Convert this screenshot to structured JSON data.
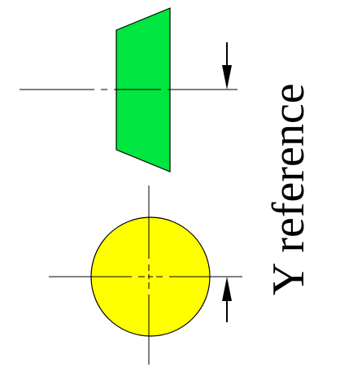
{
  "diagram": {
    "caption": "Y reference",
    "shapes": {
      "trapezoid": {
        "fill": "#00e640",
        "stroke": "#000000"
      },
      "circle": {
        "fill": "#ffff00",
        "stroke": "#000000"
      }
    },
    "arrows": {
      "upper": {
        "direction": "down"
      },
      "lower": {
        "direction": "up"
      }
    },
    "line_color": "#000000"
  }
}
